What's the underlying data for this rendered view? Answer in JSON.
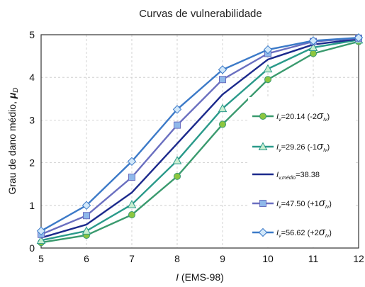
{
  "chart_data": {
    "type": "line",
    "title": "Curvas de vulnerabilidade",
    "xlabel_italic": "I",
    "xlabel_rest": " (EMS-98)",
    "ylabel_text": "Grau de dano médio, ",
    "ylabel_mu": "μ",
    "ylabel_sub": "D",
    "x": [
      5,
      6,
      7,
      8,
      9,
      10,
      11,
      12
    ],
    "xlim": [
      5,
      12
    ],
    "ylim": [
      0,
      5
    ],
    "xticks": [
      "5",
      "6",
      "7",
      "8",
      "9",
      "10",
      "11",
      "12"
    ],
    "yticks": [
      "0",
      "1",
      "2",
      "3",
      "4",
      "5"
    ],
    "grid": true,
    "legend_position": "right",
    "series": [
      {
        "legend_main": "I",
        "legend_sub": "v",
        "legend_value": "=20.14 (-2",
        "legend_sigma": "σ",
        "legend_sigma_sub": "Iv",
        "legend_close": ")",
        "color": "#3a9a6e",
        "marker": "circle",
        "marker_fill": "#8cc63f",
        "values": [
          0.13,
          0.3,
          0.78,
          1.68,
          2.9,
          3.95,
          4.56,
          4.84
        ]
      },
      {
        "legend_main": "I",
        "legend_sub": "v",
        "legend_value": "=29.26 (-1",
        "legend_sigma": "σ",
        "legend_sigma_sub": "Iv",
        "legend_close": ")",
        "color": "#2a9a8a",
        "marker": "triangle",
        "marker_fill": "#c8eed0",
        "values": [
          0.18,
          0.4,
          1.02,
          2.05,
          3.27,
          4.2,
          4.7,
          4.88
        ]
      },
      {
        "legend_main": "I",
        "legend_sub": "v,médio",
        "legend_value": "=38.38",
        "legend_sigma": "",
        "legend_sigma_sub": "",
        "legend_close": "",
        "color": "#1c2a8c",
        "marker": "none",
        "marker_fill": "#1c2a8c",
        "values": [
          0.24,
          0.55,
          1.3,
          2.45,
          3.6,
          4.42,
          4.77,
          4.9
        ]
      },
      {
        "legend_main": "I",
        "legend_sub": "v",
        "legend_value": "=47.50 (+1",
        "legend_sigma": "σ",
        "legend_sigma_sub": "Iv",
        "legend_close": ")",
        "color": "#6a6fc0",
        "marker": "square",
        "marker_fill": "#8fb8ea",
        "values": [
          0.32,
          0.76,
          1.66,
          2.88,
          3.95,
          4.56,
          4.84,
          4.92
        ]
      },
      {
        "legend_main": "I",
        "legend_sub": "v",
        "legend_value": "=56.62 (+2",
        "legend_sigma": "σ",
        "legend_sigma_sub": "Iv",
        "legend_close": ")",
        "color": "#3c7ac8",
        "marker": "diamond",
        "marker_fill": "#d2e8fa",
        "values": [
          0.4,
          1.0,
          2.03,
          3.25,
          4.18,
          4.65,
          4.86,
          4.93
        ]
      }
    ]
  }
}
